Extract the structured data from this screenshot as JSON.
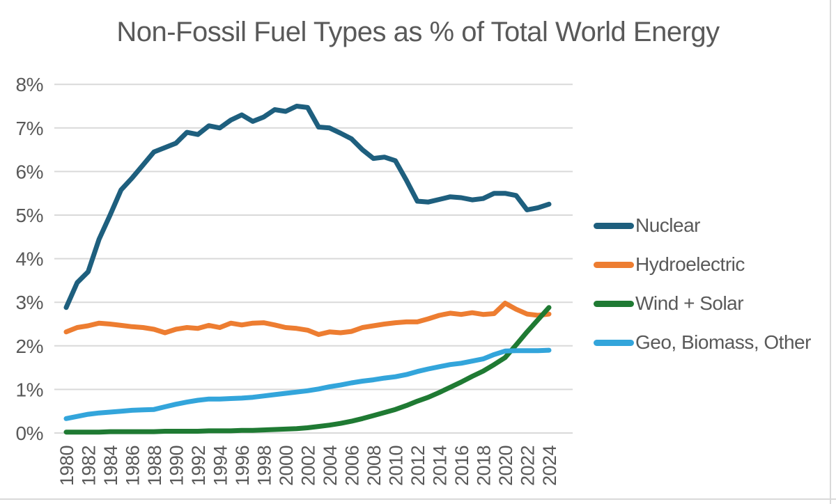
{
  "chart_data": {
    "type": "line",
    "title": "Non-Fossil Fuel Types as % of Total World Energy",
    "xlabel": "",
    "ylabel": "",
    "ylim": [
      0,
      8
    ],
    "grid": "horizontal",
    "grid_color": "#d9d9d9",
    "tick_label_color": "#595959",
    "title_color": "#595959",
    "legend_position": "right",
    "x": [
      1980,
      1981,
      1982,
      1983,
      1984,
      1985,
      1986,
      1987,
      1988,
      1989,
      1990,
      1991,
      1992,
      1993,
      1994,
      1995,
      1996,
      1997,
      1998,
      1999,
      2000,
      2001,
      2002,
      2003,
      2004,
      2005,
      2006,
      2007,
      2008,
      2009,
      2010,
      2011,
      2012,
      2013,
      2014,
      2015,
      2016,
      2017,
      2018,
      2019,
      2020,
      2021,
      2022,
      2023,
      2024
    ],
    "x_tick_labels": [
      "1980",
      "1982",
      "1984",
      "1986",
      "1988",
      "1990",
      "1992",
      "1994",
      "1996",
      "1998",
      "2000",
      "2002",
      "2004",
      "2006",
      "2008",
      "2010",
      "2012",
      "2014",
      "2016",
      "2018",
      "2020",
      "2022",
      "2024"
    ],
    "y_tick_labels": [
      "0%",
      "1%",
      "2%",
      "3%",
      "4%",
      "5%",
      "6%",
      "7%",
      "8%"
    ],
    "series": [
      {
        "name": "Nuclear",
        "color": "#1e5f7e",
        "values": [
          2.88,
          3.45,
          3.7,
          4.45,
          5.0,
          5.58,
          5.85,
          6.15,
          6.45,
          6.55,
          6.65,
          6.9,
          6.85,
          7.05,
          7.0,
          7.18,
          7.3,
          7.15,
          7.25,
          7.42,
          7.38,
          7.5,
          7.47,
          7.02,
          7.0,
          6.88,
          6.75,
          6.5,
          6.3,
          6.33,
          6.25,
          5.8,
          5.32,
          5.3,
          5.36,
          5.42,
          5.4,
          5.35,
          5.38,
          5.5,
          5.5,
          5.45,
          5.12,
          5.17,
          5.25
        ]
      },
      {
        "name": "Hydroelectric",
        "color": "#ed7d31",
        "values": [
          2.32,
          2.42,
          2.46,
          2.52,
          2.5,
          2.47,
          2.44,
          2.42,
          2.38,
          2.3,
          2.38,
          2.42,
          2.4,
          2.47,
          2.42,
          2.52,
          2.48,
          2.52,
          2.53,
          2.48,
          2.42,
          2.4,
          2.36,
          2.26,
          2.32,
          2.3,
          2.33,
          2.42,
          2.46,
          2.5,
          2.53,
          2.55,
          2.55,
          2.62,
          2.7,
          2.75,
          2.72,
          2.76,
          2.72,
          2.74,
          2.98,
          2.84,
          2.73,
          2.7,
          2.73
        ]
      },
      {
        "name": "Wind + Solar",
        "color": "#1f7a33",
        "values": [
          0.02,
          0.02,
          0.02,
          0.02,
          0.03,
          0.03,
          0.03,
          0.03,
          0.03,
          0.04,
          0.04,
          0.04,
          0.04,
          0.05,
          0.05,
          0.05,
          0.06,
          0.06,
          0.07,
          0.08,
          0.09,
          0.1,
          0.12,
          0.15,
          0.18,
          0.22,
          0.27,
          0.33,
          0.4,
          0.47,
          0.54,
          0.63,
          0.73,
          0.82,
          0.93,
          1.05,
          1.17,
          1.3,
          1.42,
          1.57,
          1.73,
          2.02,
          2.32,
          2.6,
          2.88
        ]
      },
      {
        "name": "Geo, Biomass, Other",
        "color": "#33a5db",
        "values": [
          0.33,
          0.38,
          0.43,
          0.46,
          0.48,
          0.5,
          0.52,
          0.53,
          0.54,
          0.6,
          0.66,
          0.71,
          0.75,
          0.78,
          0.78,
          0.79,
          0.8,
          0.82,
          0.85,
          0.88,
          0.91,
          0.94,
          0.97,
          1.01,
          1.06,
          1.1,
          1.15,
          1.19,
          1.22,
          1.26,
          1.29,
          1.34,
          1.41,
          1.47,
          1.52,
          1.57,
          1.6,
          1.65,
          1.7,
          1.8,
          1.88,
          1.89,
          1.89,
          1.89,
          1.9
        ]
      }
    ]
  }
}
